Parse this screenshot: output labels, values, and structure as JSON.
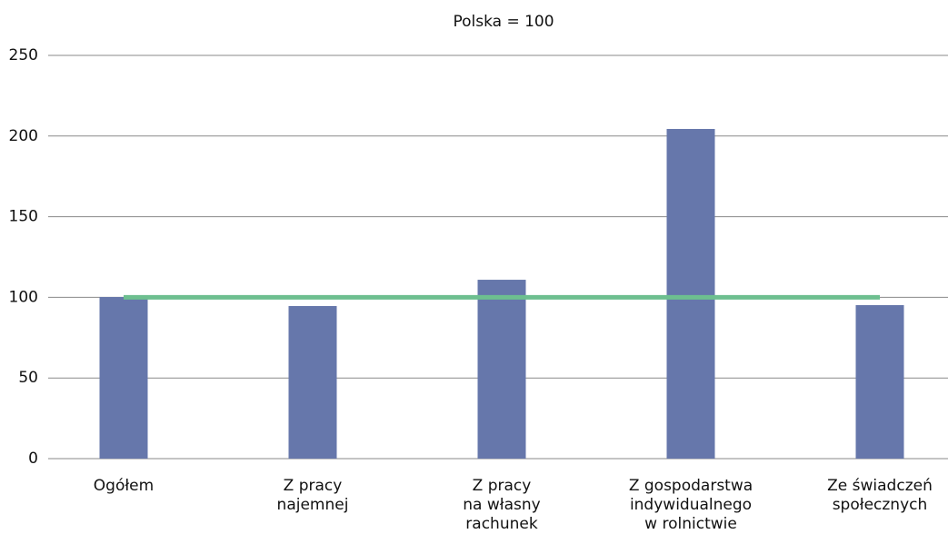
{
  "chart_data": {
    "type": "bar",
    "title": "Polska = 100",
    "categories": [
      [
        "Ogółem"
      ],
      [
        "Z pracy",
        "najemnej"
      ],
      [
        "Z pracy",
        "na własny",
        "rachunek"
      ],
      [
        "Z gospodarstwa",
        "indywidualnego",
        "w rolnictwie"
      ],
      [
        "Ze świadczeń",
        "społecznych"
      ]
    ],
    "values": [
      100.2,
      94.6,
      110.9,
      204.4,
      95.2
    ],
    "color": "#6677ab",
    "reference_line": {
      "value": 100,
      "color": "#6dbf8f"
    },
    "ylim": [
      0,
      250
    ],
    "yticks": [
      0,
      50,
      100,
      150,
      200,
      250
    ],
    "grid": true
  }
}
